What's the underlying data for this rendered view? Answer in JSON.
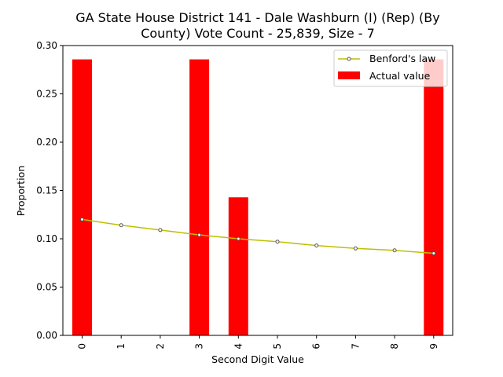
{
  "chart_data": {
    "type": "bar",
    "title_line1": "GA State House District 141 - Dale Washburn (I) (Rep) (By",
    "title_line2": "County) Vote Count - 25,839, Size - 7",
    "xlabel": "Second Digit Value",
    "ylabel": "Proportion",
    "categories": [
      "0",
      "1",
      "2",
      "3",
      "4",
      "5",
      "6",
      "7",
      "8",
      "9"
    ],
    "ylim": [
      0,
      0.3
    ],
    "yticks": [
      "0.00",
      "0.05",
      "0.10",
      "0.15",
      "0.20",
      "0.25",
      "0.30"
    ],
    "ytick_values": [
      0,
      0.05,
      0.1,
      0.15,
      0.2,
      0.25,
      0.3
    ],
    "series": [
      {
        "name": "Actual value",
        "kind": "bar",
        "color": "#ff0000",
        "values": [
          0.2857,
          0,
          0,
          0.2857,
          0.1429,
          0,
          0,
          0,
          0,
          0.2857
        ]
      },
      {
        "name": "Benford's law",
        "kind": "line",
        "color": "#bfbf00",
        "values": [
          0.12,
          0.114,
          0.109,
          0.104,
          0.1,
          0.097,
          0.093,
          0.09,
          0.088,
          0.085
        ]
      }
    ],
    "legend_placement": "top-right",
    "grid": false
  }
}
